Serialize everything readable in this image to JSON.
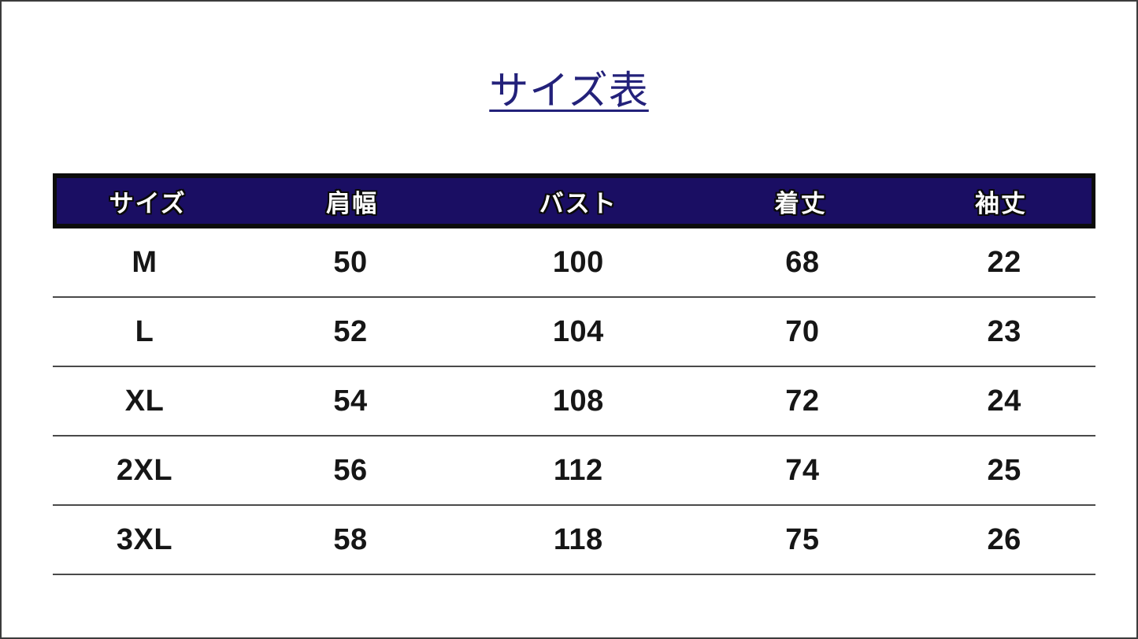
{
  "page": {
    "title": "サイズ表",
    "title_color": "#23217a",
    "background_color": "#ffffff",
    "outer_border_color": "#3c3c3c"
  },
  "table": {
    "header_background_color": "#1a0e63",
    "header_border_color": "#0c0c0c",
    "header_text_color": "#ffffff",
    "row_separator_color": "#4a4a4a",
    "columns": [
      "サイズ",
      "肩幅",
      "バスト",
      "着丈",
      "袖丈"
    ],
    "rows": [
      [
        "M",
        "50",
        "100",
        "68",
        "22"
      ],
      [
        "L",
        "52",
        "104",
        "70",
        "23"
      ],
      [
        "XL",
        "54",
        "108",
        "72",
        "24"
      ],
      [
        "2XL",
        "56",
        "112",
        "74",
        "25"
      ],
      [
        "3XL",
        "58",
        "118",
        "75",
        "26"
      ]
    ]
  },
  "chart_data": {
    "type": "table",
    "title": "サイズ表",
    "columns": [
      "サイズ",
      "肩幅",
      "バスト",
      "着丈",
      "袖丈"
    ],
    "rows": [
      {
        "size": "M",
        "shoulder_width": 50,
        "bust": 100,
        "length": 68,
        "sleeve_length": 22
      },
      {
        "size": "L",
        "shoulder_width": 52,
        "bust": 104,
        "length": 70,
        "sleeve_length": 23
      },
      {
        "size": "XL",
        "shoulder_width": 54,
        "bust": 108,
        "length": 72,
        "sleeve_length": 24
      },
      {
        "size": "2XL",
        "shoulder_width": 56,
        "bust": 112,
        "length": 74,
        "sleeve_length": 25
      },
      {
        "size": "3XL",
        "shoulder_width": 58,
        "bust": 118,
        "length": 75,
        "sleeve_length": 26
      }
    ]
  }
}
